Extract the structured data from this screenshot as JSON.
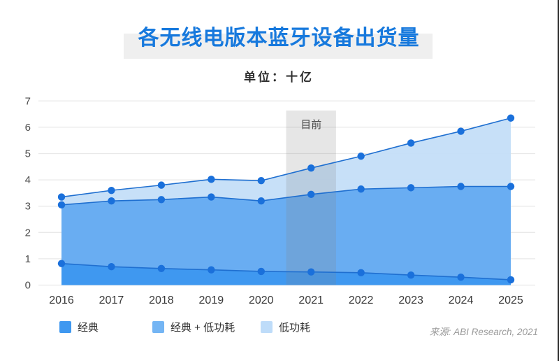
{
  "header": {
    "title": "各无线电版本蓝牙设备出货量",
    "subtitle": "单位：十亿"
  },
  "chart_data": {
    "type": "area",
    "stacked": true,
    "title": "各无线电版本蓝牙设备出货量",
    "unit_label": "单位：十亿",
    "x": [
      2016,
      2017,
      2018,
      2019,
      2020,
      2021,
      2022,
      2023,
      2024,
      2025
    ],
    "ylim": [
      0,
      7
    ],
    "yticks": [
      0,
      1,
      2,
      3,
      4,
      5,
      6,
      7
    ],
    "grid": true,
    "legend_position": "bottom",
    "series": [
      {
        "name": "经典",
        "color": "#3f98f0",
        "fill": "#3f98f0",
        "line": [
          0.82,
          0.7,
          0.63,
          0.58,
          0.52,
          0.5,
          0.47,
          0.38,
          0.3,
          0.2
        ]
      },
      {
        "name": "经典 + 低功耗",
        "color": "#74b5f4",
        "fill": "#69adf2",
        "line": [
          3.05,
          3.2,
          3.25,
          3.35,
          3.2,
          3.45,
          3.65,
          3.7,
          3.75,
          3.75
        ]
      },
      {
        "name": "低功耗",
        "color": "#bedcf9",
        "fill": "#c4def8",
        "line": [
          3.35,
          3.6,
          3.8,
          4.02,
          3.97,
          4.45,
          4.9,
          5.4,
          5.85,
          6.35
        ]
      }
    ],
    "line_color": "#1f6fd0",
    "point_color": "#1a70db",
    "grid_color": "#e9e9e9",
    "axis_text_color": "#4d4d4d",
    "annotation": {
      "label": "目前",
      "x_range": [
        2020.5,
        2021.5
      ]
    }
  },
  "footer": {
    "source": "来源: ABI Research, 2021"
  }
}
